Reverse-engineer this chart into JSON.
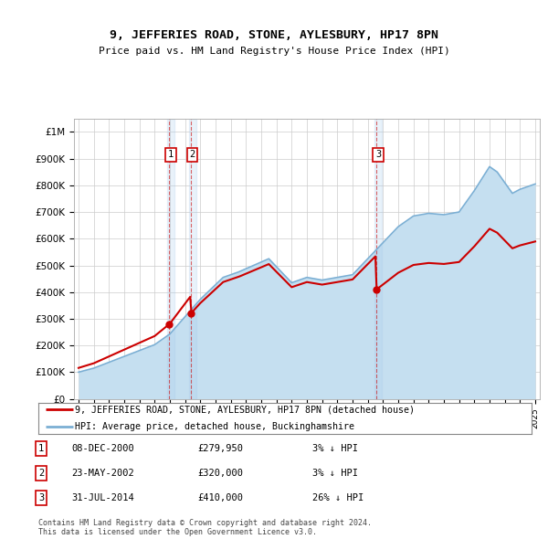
{
  "title": "9, JEFFERIES ROAD, STONE, AYLESBURY, HP17 8PN",
  "subtitle": "Price paid vs. HM Land Registry's House Price Index (HPI)",
  "ylabel_ticks": [
    "£0",
    "£100K",
    "£200K",
    "£300K",
    "£400K",
    "£500K",
    "£600K",
    "£700K",
    "£800K",
    "£900K",
    "£1M"
  ],
  "ytick_values": [
    0,
    100000,
    200000,
    300000,
    400000,
    500000,
    600000,
    700000,
    800000,
    900000,
    1000000
  ],
  "ylim": [
    0,
    1050000
  ],
  "background_color": "#ffffff",
  "plot_bg_color": "#ffffff",
  "grid_color": "#cccccc",
  "transaction_info": [
    {
      "num": "1",
      "date": "08-DEC-2000",
      "price": "£279,950",
      "pct": "3% ↓ HPI",
      "year": 2000.96,
      "price_val": 279950
    },
    {
      "num": "2",
      "date": "23-MAY-2002",
      "price": "£320,000",
      "pct": "3% ↓ HPI",
      "year": 2002.38,
      "price_val": 320000
    },
    {
      "num": "3",
      "date": "31-JUL-2014",
      "price": "£410,000",
      "pct": "26% ↓ HPI",
      "year": 2014.58,
      "price_val": 410000
    }
  ],
  "legend_entries": [
    "9, JEFFERIES ROAD, STONE, AYLESBURY, HP17 8PN (detached house)",
    "HPI: Average price, detached house, Buckinghamshire"
  ],
  "footer": "Contains HM Land Registry data © Crown copyright and database right 2024.\nThis data is licensed under the Open Government Licence v3.0.",
  "property_color": "#cc0000",
  "hpi_color": "#7bafd4",
  "hpi_fill_color": "#c5dff0"
}
